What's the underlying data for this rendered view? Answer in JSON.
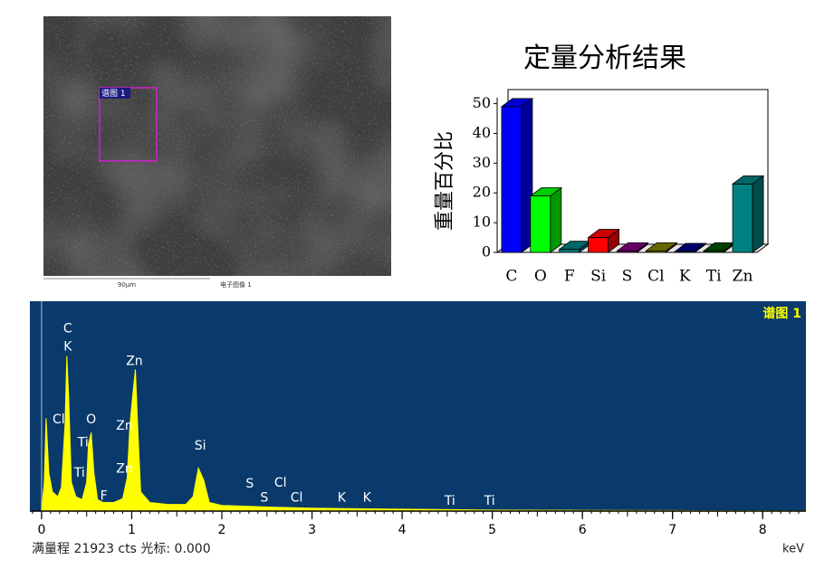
{
  "image": {
    "region_label": "谱图 1",
    "scale_bar": "90µm",
    "caption": "电子图像 1"
  },
  "chart_data": [
    {
      "type": "bar",
      "title": "定量分析结果",
      "ylabel": "重量百分比",
      "categories": [
        "C",
        "O",
        "F",
        "Si",
        "S",
        "Cl",
        "K",
        "Ti",
        "Zn"
      ],
      "values": [
        49,
        19,
        1,
        5,
        0.5,
        0.5,
        0.3,
        0.5,
        23
      ],
      "colors": [
        "#0000ff",
        "#00ff00",
        "#008080",
        "#ff0000",
        "#800080",
        "#808000",
        "#000080",
        "#005000",
        "#008080"
      ],
      "ylim": [
        0,
        52
      ],
      "yticks": [
        0,
        10,
        20,
        30,
        40,
        50
      ]
    },
    {
      "type": "area",
      "label": "谱图 1",
      "xlabel": "keV",
      "status": "满量程 21923 cts 光标: 0.000",
      "color": "#ffff00",
      "background": "#0a3a6b",
      "x": [
        0,
        0.03,
        0.05,
        0.08,
        0.12,
        0.18,
        0.22,
        0.26,
        0.28,
        0.3,
        0.33,
        0.38,
        0.45,
        0.5,
        0.52,
        0.55,
        0.58,
        0.62,
        0.68,
        0.8,
        0.9,
        0.95,
        0.98,
        1.01,
        1.04,
        1.07,
        1.1,
        1.2,
        1.4,
        1.6,
        1.68,
        1.74,
        1.8,
        1.86,
        2.0,
        2.3,
        2.6,
        3.0,
        3.5,
        4.0,
        4.5,
        5.0,
        6.0,
        7.0,
        8.0,
        8.48
      ],
      "values": [
        0,
        3000,
        9700,
        4000,
        2000,
        1500,
        2500,
        9000,
        16200,
        12000,
        3000,
        1500,
        1200,
        3000,
        7000,
        8200,
        4000,
        1200,
        900,
        900,
        1300,
        3500,
        9000,
        12000,
        14800,
        8000,
        2000,
        900,
        700,
        700,
        1500,
        4500,
        3200,
        900,
        600,
        500,
        400,
        300,
        250,
        200,
        150,
        100,
        80,
        60,
        40,
        30
      ],
      "xlim": [
        -0.13,
        8.48
      ],
      "ylim": [
        0,
        21923
      ],
      "xticks": [
        0,
        1,
        2,
        3,
        4,
        5,
        6,
        7,
        8
      ],
      "annotations": [
        {
          "text": "C",
          "x": 0.29,
          "y": 19060
        },
        {
          "text": "K",
          "x": 0.29,
          "y": 17160
        },
        {
          "text": "Zn",
          "x": 1.03,
          "y": 15630
        },
        {
          "text": "Cl",
          "x": 0.19,
          "y": 9530
        },
        {
          "text": "O",
          "x": 0.55,
          "y": 9530
        },
        {
          "text": "Ti",
          "x": 0.46,
          "y": 7150
        },
        {
          "text": "Zn",
          "x": 0.92,
          "y": 8900
        },
        {
          "text": "Ti",
          "x": 0.42,
          "y": 3980
        },
        {
          "text": "Zn",
          "x": 0.92,
          "y": 4400
        },
        {
          "text": "Si",
          "x": 1.76,
          "y": 6800
        },
        {
          "text": "F",
          "x": 0.69,
          "y": 1570
        },
        {
          "text": "S",
          "x": 2.31,
          "y": 2830
        },
        {
          "text": "S",
          "x": 2.47,
          "y": 1360
        },
        {
          "text": "Cl",
          "x": 2.65,
          "y": 2940
        },
        {
          "text": "Cl",
          "x": 2.83,
          "y": 1360
        },
        {
          "text": "K",
          "x": 3.33,
          "y": 1360
        },
        {
          "text": "K",
          "x": 3.61,
          "y": 1360
        },
        {
          "text": "Ti",
          "x": 4.53,
          "y": 1050
        },
        {
          "text": "Ti",
          "x": 4.97,
          "y": 1050
        }
      ]
    }
  ]
}
